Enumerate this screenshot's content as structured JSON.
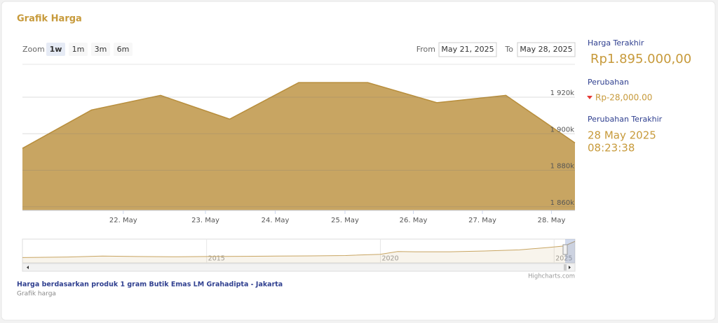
{
  "header": {
    "title": "Grafik Harga"
  },
  "toolbar": {
    "zoom_label": "Zoom",
    "zoom_buttons": [
      {
        "label": "1w",
        "selected": true
      },
      {
        "label": "1m",
        "selected": false
      },
      {
        "label": "3m",
        "selected": false
      },
      {
        "label": "6m",
        "selected": false
      }
    ],
    "from_label": "From",
    "from_date": "May 21, 2025",
    "to_label": "To",
    "to_date": "May 28, 2025"
  },
  "chart_data": {
    "type": "area",
    "categories": [
      null,
      null,
      null,
      null,
      null,
      null,
      null,
      null,
      null
    ],
    "values": [
      1892000,
      1913000,
      1921000,
      1908000,
      1928000,
      1928000,
      1917000,
      1921000,
      1895000
    ],
    "color": "#c8a562",
    "xlim": [
      0,
      8
    ],
    "xticks": [
      {
        "value": 1.46,
        "label": "22. May"
      },
      {
        "value": 2.65,
        "label": "23. May"
      },
      {
        "value": 3.66,
        "label": "24. May"
      },
      {
        "value": 4.67,
        "label": "25. May"
      },
      {
        "value": 5.66,
        "label": "26. May"
      },
      {
        "value": 6.66,
        "label": "27. May"
      },
      {
        "value": 7.66,
        "label": "28. May"
      }
    ],
    "ylim": [
      1858000,
      1938000
    ],
    "yticks": [
      {
        "value": 1860000,
        "label": "1 860k"
      },
      {
        "value": 1880000,
        "label": "1 880k"
      },
      {
        "value": 1900000,
        "label": "1 900k"
      },
      {
        "value": 1920000,
        "label": "1 920k"
      }
    ],
    "grid": true,
    "credit": "Highcharts.com",
    "navigator": {
      "type": "line",
      "x": [
        2009.7,
        2011,
        2012,
        2013,
        2014,
        2015,
        2016,
        2017,
        2018,
        2019,
        2020,
        2020.5,
        2021,
        2022,
        2023,
        2024,
        2024.8,
        2025.3,
        2025.6
      ],
      "values": [
        470000,
        520000,
        600000,
        560000,
        540000,
        560000,
        580000,
        600000,
        620000,
        650000,
        760000,
        1000000,
        980000,
        980000,
        1050000,
        1150000,
        1350000,
        1500000,
        1900000
      ],
      "xlim": [
        2009.7,
        2025.6
      ],
      "ylim": [
        0,
        2100000
      ],
      "xticks": [
        2015,
        2020,
        2025
      ]
    }
  },
  "side_panel": {
    "last_price_label": "Harga Terakhir",
    "last_price": "Rp1.895.000,00",
    "change_label": "Perubahan",
    "change": "Rp-28,000.00",
    "last_change_label": "Perubahan Terakhir",
    "last_change_date": "28 May 2025",
    "last_change_time": "08:23:38"
  },
  "footer": {
    "caption": "Harga berdasarkan produk 1 gram Butik Emas LM Grahadipta - Jakarta",
    "subcaption": "Grafik harga"
  }
}
